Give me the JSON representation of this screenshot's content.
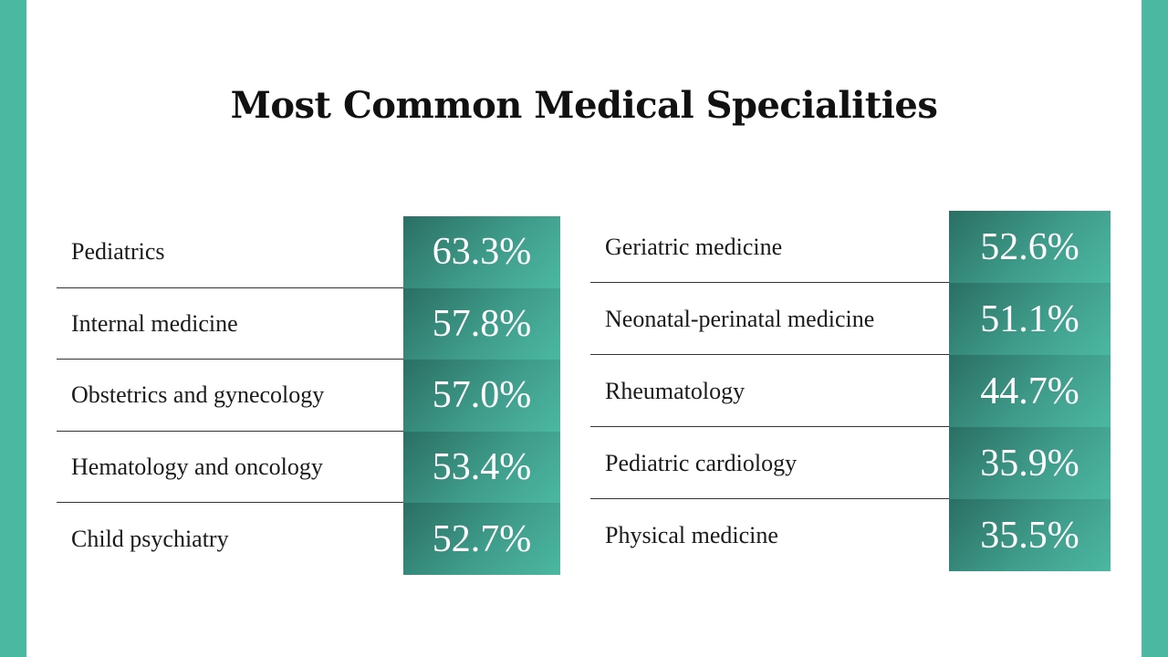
{
  "title": "Most Common Medical Specialities",
  "colors": {
    "accent": "#4bb8a2",
    "cell_dark": "#2a6f63",
    "cell_light": "#4bb8a2"
  },
  "left_table": {
    "rows": [
      {
        "label": "Pediatrics",
        "value": "63.3%"
      },
      {
        "label": "Internal medicine",
        "value": "57.8%"
      },
      {
        "label": "Obstetrics and gynecology",
        "value": "57.0%"
      },
      {
        "label": "Hematology and oncology",
        "value": "53.4%"
      },
      {
        "label": "Child psychiatry",
        "value": "52.7%"
      }
    ]
  },
  "right_table": {
    "rows": [
      {
        "label": "Geriatric medicine",
        "value": "52.6%"
      },
      {
        "label": "Neonatal-perinatal medicine",
        "value": "51.1%"
      },
      {
        "label": "Rheumatology",
        "value": "44.7%"
      },
      {
        "label": "Pediatric cardiology",
        "value": "35.9%"
      },
      {
        "label": "Physical medicine",
        "value": "35.5%"
      }
    ]
  }
}
